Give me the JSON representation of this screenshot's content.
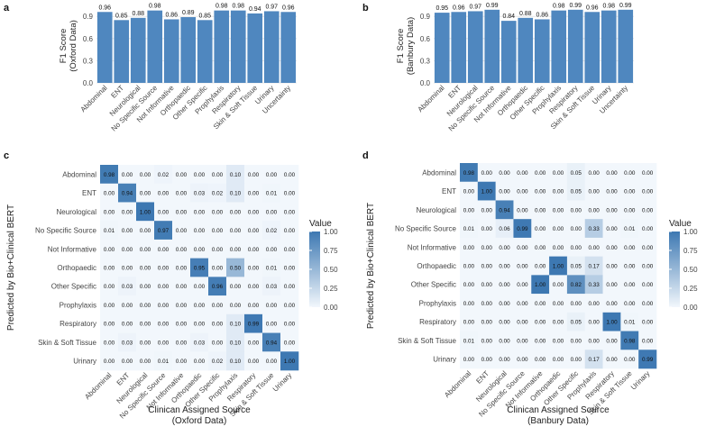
{
  "panels": {
    "a": "a",
    "b": "b",
    "c": "c",
    "d": "d"
  },
  "colors": {
    "bar": "#4f87bf",
    "grid": "#e2e2e2",
    "heat_low": "#f2f7fc",
    "heat_high": "#3d78b2"
  },
  "chart_data": [
    {
      "id": "a",
      "type": "bar",
      "title": "",
      "xlabel": "",
      "ylabel": "F1 Score\n(Oxford Data)",
      "ylabel_lines": [
        "F1 Score",
        "(Oxford Data)"
      ],
      "ylim": [
        0,
        1.0
      ],
      "yticks": [
        "0.0",
        "0.3",
        "0.6",
        "0.9"
      ],
      "ytick_values": [
        0,
        0.3,
        0.6,
        0.9
      ],
      "categories": [
        "Abdominal",
        "ENT",
        "Neurological",
        "No Specific Source",
        "Not Informative",
        "Orthopaedic",
        "Other Specific",
        "Prophylaxis",
        "Respiratory",
        "Skin & Soft Tissue",
        "Urinary",
        "Uncertainty"
      ],
      "values": [
        0.96,
        0.85,
        0.88,
        0.98,
        0.86,
        0.89,
        0.85,
        0.98,
        0.98,
        0.94,
        0.97,
        0.96
      ],
      "labels": [
        "0.96",
        "0.85",
        "0.88",
        "0.98",
        "0.86",
        "0.89",
        "0.85",
        "0.98",
        "0.98",
        "0.94",
        "0.97",
        "0.96"
      ]
    },
    {
      "id": "b",
      "type": "bar",
      "title": "",
      "xlabel": "",
      "ylabel": "F1 Score\n(Banbury Data)",
      "ylabel_lines": [
        "F1 Score",
        "(Banbury Data)"
      ],
      "ylim": [
        0,
        1.0
      ],
      "yticks": [
        "0.0",
        "0.3",
        "0.6",
        "0.9"
      ],
      "ytick_values": [
        0,
        0.3,
        0.6,
        0.9
      ],
      "categories": [
        "Abdominal",
        "ENT",
        "Neurological",
        "No Specific Source",
        "Not Informative",
        "Orthopaedic",
        "Other Specific",
        "Prophylaxis",
        "Respiratory",
        "Skin & Soft Tissue",
        "Urinary",
        "Uncertainty"
      ],
      "values": [
        0.95,
        0.96,
        0.97,
        0.99,
        0.84,
        0.88,
        0.86,
        0.98,
        0.99,
        0.96,
        0.98,
        0.99
      ],
      "labels": [
        "0.95",
        "0.96",
        "0.97",
        "0.99",
        "0.84",
        "0.88",
        "0.86",
        "0.98",
        "0.99",
        "0.96",
        "0.98",
        "0.99"
      ]
    },
    {
      "id": "c",
      "type": "heatmap",
      "xlabel": "Clinican Assigned Source\n(Oxford Data)",
      "xlabel_lines": [
        "Clinican Assigned Source",
        "(Oxford Data)"
      ],
      "ylabel": "Predicted by Bio+Clinical BERT",
      "x_categories": [
        "Abdominal",
        "ENT",
        "Neurological",
        "No Specific Source",
        "Not Informative",
        "Orthopaedic",
        "Other Specific",
        "Prophylaxis",
        "Respiratory",
        "Skin & Soft Tissue",
        "Urinary"
      ],
      "y_categories": [
        "Abdominal",
        "ENT",
        "Neurological",
        "No Specific Source",
        "Not Informative",
        "Orthopaedic",
        "Other Specific",
        "Prophylaxis",
        "Respiratory",
        "Skin & Soft Tissue",
        "Urinary"
      ],
      "values": [
        [
          0.98,
          0.0,
          0.0,
          0.02,
          0.0,
          0.0,
          0.0,
          0.1,
          0.0,
          0.0,
          0.0
        ],
        [
          0.0,
          0.94,
          0.0,
          0.0,
          0.0,
          0.03,
          0.02,
          0.1,
          0.0,
          0.01,
          0.0
        ],
        [
          0.0,
          0.0,
          1.0,
          0.0,
          0.0,
          0.0,
          0.0,
          0.0,
          0.0,
          0.0,
          0.0
        ],
        [
          0.01,
          0.0,
          0.0,
          0.97,
          0.0,
          0.0,
          0.0,
          0.0,
          0.0,
          0.02,
          0.0
        ],
        [
          0.0,
          0.0,
          0.0,
          0.0,
          0.0,
          0.0,
          0.0,
          0.0,
          0.0,
          0.0,
          0.0
        ],
        [
          0.0,
          0.0,
          0.0,
          0.0,
          0.0,
          0.95,
          0.0,
          0.5,
          0.0,
          0.01,
          0.0
        ],
        [
          0.0,
          0.03,
          0.0,
          0.0,
          0.0,
          0.0,
          0.96,
          0.0,
          0.0,
          0.03,
          0.0
        ],
        [
          0.0,
          0.0,
          0.0,
          0.0,
          0.0,
          0.0,
          0.0,
          0.0,
          0.0,
          0.0,
          0.0
        ],
        [
          0.0,
          0.0,
          0.0,
          0.0,
          0.0,
          0.0,
          0.0,
          0.1,
          0.99,
          0.0,
          0.0
        ],
        [
          0.0,
          0.03,
          0.0,
          0.0,
          0.0,
          0.03,
          0.0,
          0.1,
          0.0,
          0.94,
          0.0
        ],
        [
          0.0,
          0.0,
          0.0,
          0.01,
          0.0,
          0.0,
          0.02,
          0.1,
          0.0,
          0.0,
          1.0
        ]
      ],
      "legend_title": "Value",
      "legend_ticks": [
        "1.00",
        "0.75",
        "0.50",
        "0.25",
        "0.00"
      ],
      "legend_values": [
        1.0,
        0.75,
        0.5,
        0.25,
        0.0
      ]
    },
    {
      "id": "d",
      "type": "heatmap",
      "xlabel": "Clinican Assigned Source\n(Banbury Data)",
      "xlabel_lines": [
        "Clinican Assigned Source",
        "(Banbury Data)"
      ],
      "ylabel": "Predicted by Bio+Clinical BERT",
      "x_categories": [
        "Abdominal",
        "ENT",
        "Neurological",
        "No Specific Source",
        "Not Informative",
        "Orthopaedic",
        "Other Specific",
        "Prophylaxis",
        "Respiratory",
        "Skin & Soft Tissue",
        "Urinary"
      ],
      "y_categories": [
        "Abdominal",
        "ENT",
        "Neurological",
        "No Specific Source",
        "Not Informative",
        "Orthopaedic",
        "Other Specific",
        "Prophylaxis",
        "Respiratory",
        "Skin & Soft Tissue",
        "Urinary"
      ],
      "values": [
        [
          0.98,
          0.0,
          0.0,
          0.0,
          0.0,
          0.0,
          0.05,
          0.0,
          0.0,
          0.0,
          0.0
        ],
        [
          0.0,
          1.0,
          0.0,
          0.0,
          0.0,
          0.0,
          0.05,
          0.0,
          0.0,
          0.0,
          0.0
        ],
        [
          0.0,
          0.0,
          0.94,
          0.0,
          0.0,
          0.0,
          0.0,
          0.0,
          0.0,
          0.0,
          0.0
        ],
        [
          0.01,
          0.0,
          0.06,
          0.99,
          0.0,
          0.0,
          0.0,
          0.33,
          0.0,
          0.01,
          0.0
        ],
        [
          0.0,
          0.0,
          0.0,
          0.0,
          0.0,
          0.0,
          0.0,
          0.0,
          0.0,
          0.0,
          0.0
        ],
        [
          0.0,
          0.0,
          0.0,
          0.0,
          0.0,
          1.0,
          0.05,
          0.17,
          0.0,
          0.0,
          0.0
        ],
        [
          0.0,
          0.0,
          0.0,
          0.0,
          1.0,
          0.0,
          0.82,
          0.33,
          0.0,
          0.0,
          0.0
        ],
        [
          0.0,
          0.0,
          0.0,
          0.0,
          0.0,
          0.0,
          0.0,
          0.0,
          0.0,
          0.0,
          0.0
        ],
        [
          0.0,
          0.0,
          0.0,
          0.0,
          0.0,
          0.0,
          0.05,
          0.0,
          1.0,
          0.01,
          0.0
        ],
        [
          0.01,
          0.0,
          0.0,
          0.0,
          0.0,
          0.0,
          0.0,
          0.0,
          0.0,
          0.98,
          0.0
        ],
        [
          0.0,
          0.0,
          0.0,
          0.0,
          0.0,
          0.0,
          0.0,
          0.17,
          0.0,
          0.0,
          0.99
        ]
      ],
      "legend_title": "Value",
      "legend_ticks": [
        "1.00",
        "0.75",
        "0.50",
        "0.25",
        "0.00"
      ],
      "legend_values": [
        1.0,
        0.75,
        0.5,
        0.25,
        0.0
      ]
    }
  ]
}
